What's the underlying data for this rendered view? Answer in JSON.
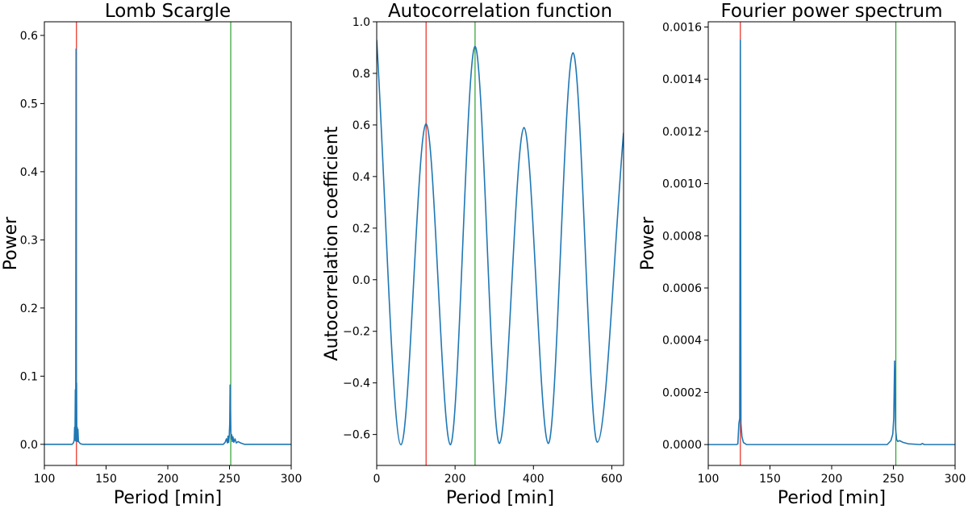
{
  "figure": {
    "background": "#ffffff",
    "series_color": "#1f77b4",
    "marker_colors": {
      "red": "#e8281d",
      "green": "#2ca02c"
    }
  },
  "chart_data": [
    {
      "type": "line",
      "title": "Lomb Scargle",
      "xlabel": "Period [min]",
      "ylabel": "Power",
      "xlim": [
        100,
        300
      ],
      "ylim": [
        -0.031,
        0.62
      ],
      "xticks": [
        100,
        150,
        200,
        250,
        300
      ],
      "xtick_labels": [
        "100",
        "150",
        "200",
        "250",
        "300"
      ],
      "yticks": [
        0.0,
        0.1,
        0.2,
        0.3,
        0.4,
        0.5,
        0.6
      ],
      "ytick_labels": [
        "0.0",
        "0.1",
        "0.2",
        "0.3",
        "0.4",
        "0.5",
        "0.6"
      ],
      "vlines": [
        {
          "x": 126,
          "color": "red"
        },
        {
          "x": 251,
          "color": "green"
        }
      ],
      "series": [
        {
          "x": [
            100,
            122.5,
            123.5,
            124.2,
            124.5,
            124.8,
            125.1,
            125.4,
            125.7,
            125.9,
            126.1,
            126.3,
            126.6,
            126.9,
            127.2,
            127.6,
            128.2,
            129,
            131,
            245,
            246.5,
            247.5,
            248.3,
            248.8,
            249.3,
            249.8,
            250.2,
            250.5,
            250.8,
            251.1,
            251.4,
            251.8,
            252.3,
            252.8,
            253.5,
            254.5,
            255.5,
            257,
            259,
            262,
            300
          ],
          "y": [
            0,
            0,
            0.002,
            0.006,
            0.025,
            0.006,
            0.08,
            0.005,
            0.58,
            0.01,
            0.09,
            0.005,
            0.025,
            0.004,
            0.022,
            0.004,
            0.003,
            0.001,
            0,
            0,
            0.003,
            0.008,
            0.002,
            0.012,
            0.003,
            0.013,
            0.03,
            0.087,
            0.05,
            0.018,
            0.008,
            0.014,
            0.004,
            0.011,
            0.003,
            0.008,
            0.002,
            0.004,
            0.002,
            0,
            0
          ]
        }
      ]
    },
    {
      "type": "line",
      "title": "Autocorrelation function",
      "xlabel": "Period [min]",
      "ylabel": "Autocorrelation coefficient",
      "xlim": [
        0,
        630
      ],
      "ylim": [
        -0.72,
        1.0
      ],
      "xticks": [
        0,
        200,
        400,
        600
      ],
      "xtick_labels": [
        "0",
        "200",
        "400",
        "600"
      ],
      "yticks": [
        -0.6,
        -0.4,
        -0.2,
        0.0,
        0.2,
        0.4,
        0.6,
        0.8,
        1.0
      ],
      "ytick_labels": [
        "−0.6",
        "−0.4",
        "−0.2",
        "0.0",
        "0.2",
        "0.4",
        "0.6",
        "0.8",
        "1.0"
      ],
      "vlines": [
        {
          "x": 126,
          "color": "red"
        },
        {
          "x": 251,
          "color": "green"
        }
      ],
      "series": [
        {
          "x": [
            0,
            62,
            126,
            188,
            251,
            313,
            376,
            438,
            501,
            563,
            630
          ],
          "y": [
            0.93,
            -0.64,
            0.605,
            -0.64,
            0.905,
            -0.635,
            0.59,
            -0.635,
            0.88,
            -0.63,
            0.57
          ]
        }
      ]
    },
    {
      "type": "line",
      "title": "Fourier power spectrum",
      "xlabel": "Period [min]",
      "ylabel": "Power",
      "xlim": [
        100,
        300
      ],
      "ylim": [
        -8e-05,
        0.00162
      ],
      "xticks": [
        100,
        150,
        200,
        250,
        300
      ],
      "xtick_labels": [
        "100",
        "150",
        "200",
        "250",
        "300"
      ],
      "yticks": [
        0.0,
        0.0002,
        0.0004,
        0.0006,
        0.0008,
        0.001,
        0.0012,
        0.0014,
        0.0016
      ],
      "ytick_labels": [
        "0.0000",
        "0.0002",
        "0.0004",
        "0.0006",
        "0.0008",
        "0.0010",
        "0.0012",
        "0.0014",
        "0.0016"
      ],
      "vlines": [
        {
          "x": 126,
          "color": "red"
        },
        {
          "x": 252,
          "color": "green"
        }
      ],
      "series": [
        {
          "x": [
            100,
            123,
            124,
            124.8,
            125.5,
            126,
            126.5,
            127.3,
            128.5,
            131,
            245,
            248,
            249.5,
            250.3,
            251,
            251.8,
            252.6,
            253.5,
            255,
            258,
            262,
            272,
            273.5,
            275,
            300
          ],
          "y": [
            0,
            0,
            3e-06,
            8e-05,
            0.0001,
            0.00155,
            8e-05,
            3e-05,
            8e-06,
            0,
            0,
            1.5e-05,
            4e-05,
            0.0001,
            0.00032,
            6e-05,
            2e-05,
            1.2e-05,
            1.5e-05,
            8e-06,
            3e-06,
            0,
            4e-06,
            0,
            0
          ]
        }
      ]
    }
  ]
}
